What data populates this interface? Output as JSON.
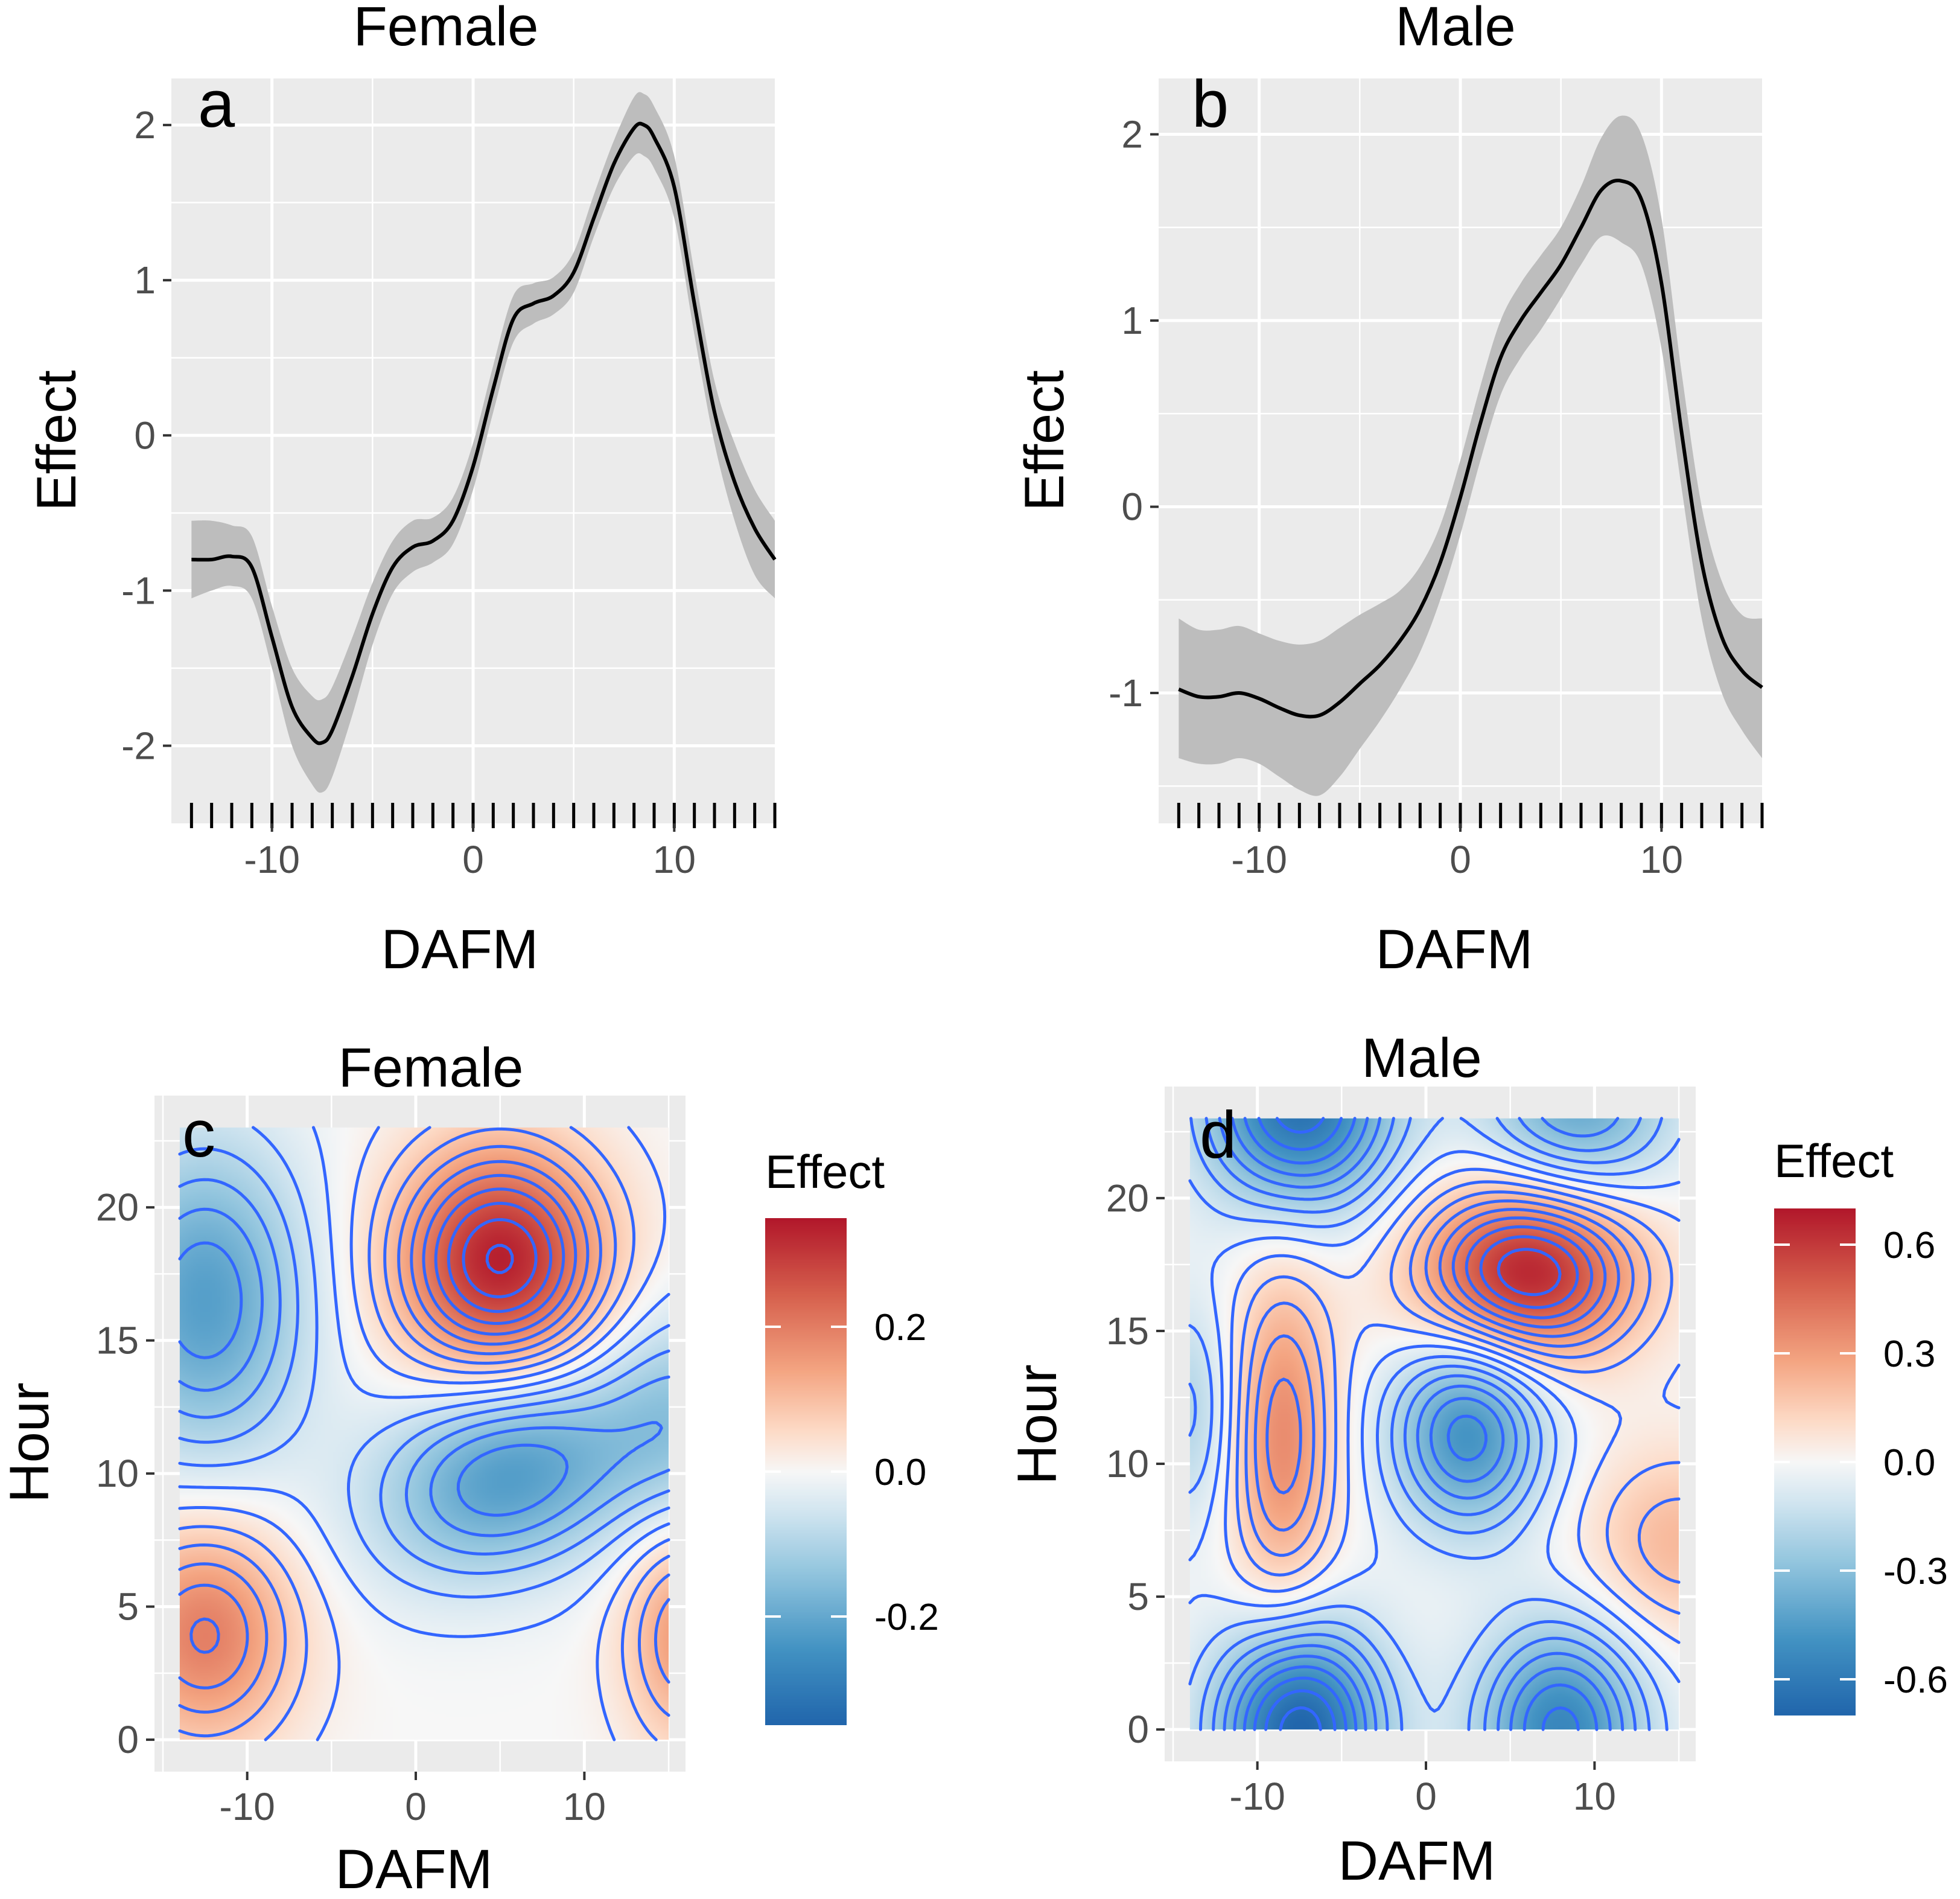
{
  "colors": {
    "panel_bg": "#ebebeb",
    "grid_major": "#ffffff",
    "line": "#000000",
    "ribbon": "#bdbdbd",
    "contour": "#3366ff",
    "cold": "#2166ac",
    "warm": "#b2182b"
  },
  "chart_data": [
    {
      "id": "a",
      "panel_label": "a",
      "type": "line",
      "title": "Female",
      "xlabel": "DAFM",
      "ylabel": "Effect",
      "xlim": [
        -15,
        15
      ],
      "ylim": [
        -2.5,
        2.3
      ],
      "xticks": [
        -10,
        0,
        10
      ],
      "yticks": [
        -2,
        -1,
        0,
        1,
        2
      ],
      "rug": [
        -14,
        -13,
        -12,
        -11,
        -10,
        -9,
        -8,
        -7,
        -6,
        -5,
        -4,
        -3,
        -2,
        -1,
        0,
        1,
        2,
        3,
        4,
        5,
        6,
        7,
        8,
        9,
        10,
        11,
        12,
        13,
        14,
        15
      ],
      "series": [
        {
          "name": "Effect",
          "x": [
            -14,
            -13,
            -12,
            -11,
            -10,
            -9,
            -8,
            -7.5,
            -7,
            -6,
            -5,
            -4,
            -3,
            -2,
            -1,
            0,
            1,
            2,
            3,
            4,
            5,
            6,
            7,
            8,
            8.5,
            9,
            10,
            11,
            12,
            13,
            14,
            15
          ],
          "y": [
            -0.8,
            -0.8,
            -0.78,
            -0.85,
            -1.3,
            -1.75,
            -1.95,
            -1.98,
            -1.9,
            -1.55,
            -1.15,
            -0.85,
            -0.72,
            -0.68,
            -0.55,
            -0.2,
            0.3,
            0.75,
            0.85,
            0.9,
            1.05,
            1.4,
            1.75,
            1.98,
            2.0,
            1.92,
            1.6,
            0.85,
            0.15,
            -0.3,
            -0.6,
            -0.8
          ],
          "lower": [
            -1.05,
            -1.0,
            -0.97,
            -1.05,
            -1.5,
            -2.0,
            -2.25,
            -2.3,
            -2.2,
            -1.8,
            -1.35,
            -1.02,
            -0.88,
            -0.82,
            -0.7,
            -0.35,
            0.15,
            0.6,
            0.72,
            0.78,
            0.92,
            1.28,
            1.6,
            1.8,
            1.8,
            1.72,
            1.4,
            0.65,
            -0.05,
            -0.55,
            -0.9,
            -1.05
          ],
          "upper": [
            -0.55,
            -0.55,
            -0.58,
            -0.65,
            -1.1,
            -1.5,
            -1.68,
            -1.7,
            -1.62,
            -1.3,
            -0.95,
            -0.68,
            -0.55,
            -0.53,
            -0.4,
            -0.05,
            0.45,
            0.9,
            0.98,
            1.02,
            1.18,
            1.55,
            1.9,
            2.18,
            2.2,
            2.12,
            1.8,
            1.05,
            0.35,
            -0.05,
            -0.35,
            -0.55
          ]
        }
      ]
    },
    {
      "id": "b",
      "panel_label": "b",
      "type": "line",
      "title": "Male",
      "xlabel": "DAFM",
      "ylabel": "Effect",
      "xlim": [
        -15,
        15
      ],
      "ylim": [
        -1.7,
        2.3
      ],
      "xticks": [
        -10,
        0,
        10
      ],
      "yticks": [
        -1,
        0,
        1,
        2
      ],
      "rug": [
        -14,
        -13,
        -12,
        -11,
        -10,
        -9,
        -8,
        -7,
        -6,
        -5,
        -4,
        -3,
        -2,
        -1,
        0,
        1,
        2,
        3,
        4,
        5,
        6,
        7,
        8,
        9,
        10,
        11,
        12,
        13,
        14,
        15
      ],
      "series": [
        {
          "name": "Effect",
          "x": [
            -14,
            -13,
            -12,
            -11,
            -10,
            -9,
            -8,
            -7,
            -6,
            -5,
            -4,
            -3,
            -2,
            -1,
            0,
            1,
            2,
            3,
            4,
            5,
            6,
            7,
            8,
            9,
            10,
            11,
            12,
            13,
            14,
            15
          ],
          "y": [
            -0.98,
            -1.02,
            -1.02,
            -1.0,
            -1.03,
            -1.08,
            -1.12,
            -1.12,
            -1.05,
            -0.95,
            -0.85,
            -0.72,
            -0.55,
            -0.3,
            0.05,
            0.45,
            0.8,
            1.0,
            1.15,
            1.3,
            1.5,
            1.7,
            1.75,
            1.65,
            1.2,
            0.4,
            -0.3,
            -0.7,
            -0.88,
            -0.97
          ],
          "lower": [
            -1.35,
            -1.38,
            -1.38,
            -1.35,
            -1.38,
            -1.45,
            -1.52,
            -1.55,
            -1.45,
            -1.3,
            -1.15,
            -0.98,
            -0.78,
            -0.5,
            -0.15,
            0.25,
            0.6,
            0.8,
            0.95,
            1.12,
            1.3,
            1.45,
            1.42,
            1.3,
            0.85,
            0.1,
            -0.6,
            -1.0,
            -1.2,
            -1.35
          ],
          "upper": [
            -0.6,
            -0.66,
            -0.66,
            -0.64,
            -0.68,
            -0.72,
            -0.74,
            -0.72,
            -0.65,
            -0.58,
            -0.52,
            -0.45,
            -0.32,
            -0.1,
            0.25,
            0.65,
            1.0,
            1.2,
            1.35,
            1.5,
            1.72,
            1.98,
            2.1,
            2.0,
            1.55,
            0.72,
            0.0,
            -0.4,
            -0.58,
            -0.6
          ]
        }
      ]
    },
    {
      "id": "c",
      "panel_label": "c",
      "type": "heatmap",
      "title": "Female",
      "xlabel": "DAFM",
      "ylabel": "Hour",
      "xlim": [
        -15.5,
        16
      ],
      "ylim": [
        -1.2,
        24.2
      ],
      "data_x_range": [
        -14,
        15
      ],
      "data_y_range": [
        0,
        23
      ],
      "xticks": [
        -10,
        0,
        10
      ],
      "yticks": [
        0,
        5,
        10,
        15,
        20
      ],
      "fill_range": [
        -0.35,
        0.35
      ],
      "legend_title": "Effect",
      "legend_breaks": [
        0.2,
        0.0,
        -0.2
      ],
      "legend_labels": [
        "0.2",
        "0.0",
        "-0.2"
      ],
      "contour_step": 0.035,
      "surface": [
        {
          "x": 5,
          "y": 18,
          "sx": 4.3,
          "sy": 3.0,
          "amp": 0.34,
          "rot": 0
        },
        {
          "x": 5.5,
          "y": 10,
          "sx": 5.5,
          "sy": 2.6,
          "amp": -0.23,
          "rot": 0.15
        },
        {
          "x": -12.5,
          "y": 16.5,
          "sx": 4.2,
          "sy": 4.2,
          "amp": -0.22,
          "rot": 0
        },
        {
          "x": -12.5,
          "y": 4,
          "sx": 3.8,
          "sy": 3.0,
          "amp": 0.2,
          "rot": 0
        },
        {
          "x": 16,
          "y": 4,
          "sx": 2.6,
          "sy": 3.0,
          "amp": 0.16,
          "rot": 0
        },
        {
          "x": 16,
          "y": 12,
          "sx": 3.5,
          "sy": 3.0,
          "amp": -0.12,
          "rot": 0
        }
      ]
    },
    {
      "id": "d",
      "panel_label": "d",
      "type": "heatmap",
      "title": "Male",
      "xlabel": "DAFM",
      "ylabel": "Hour",
      "xlim": [
        -15.5,
        16
      ],
      "ylim": [
        -1.2,
        24.2
      ],
      "data_x_range": [
        -14,
        15
      ],
      "data_y_range": [
        0,
        23
      ],
      "xticks": [
        -10,
        0,
        10
      ],
      "yticks": [
        0,
        5,
        10,
        15,
        20
      ],
      "fill_range": [
        -0.7,
        0.7
      ],
      "legend_title": "Effect",
      "legend_breaks": [
        0.6,
        0.3,
        0.0,
        -0.3,
        -0.6
      ],
      "legend_labels": [
        "0.6",
        "0.3",
        "0.0",
        "-0.3",
        "-0.6"
      ],
      "contour_step": 0.07,
      "surface": [
        {
          "x": 6,
          "y": 17.2,
          "sx": 4.5,
          "sy": 2.3,
          "amp": 0.68,
          "rot": 0
        },
        {
          "x": 2.5,
          "y": 11.2,
          "sx": 3.2,
          "sy": 2.6,
          "amp": -0.5,
          "rot": 0
        },
        {
          "x": -8.5,
          "y": 11,
          "sx": 2.2,
          "sy": 4.5,
          "amp": 0.36,
          "rot": 0
        },
        {
          "x": -7.5,
          "y": 0,
          "sx": 3.5,
          "sy": 2.8,
          "amp": -0.72,
          "rot": 0
        },
        {
          "x": 8,
          "y": 0,
          "sx": 3.5,
          "sy": 2.8,
          "amp": -0.55,
          "rot": 0
        },
        {
          "x": -7.5,
          "y": 23.5,
          "sx": 4.0,
          "sy": 2.8,
          "amp": -0.65,
          "rot": 0
        },
        {
          "x": 9,
          "y": 23.5,
          "sx": 4.0,
          "sy": 2.5,
          "amp": -0.4,
          "rot": 0
        },
        {
          "x": 15,
          "y": 7,
          "sx": 4.0,
          "sy": 2.5,
          "amp": 0.22,
          "rot": 0
        },
        {
          "x": -14,
          "y": 12,
          "sx": 2.0,
          "sy": 3.0,
          "amp": -0.2,
          "rot": 0
        }
      ]
    }
  ]
}
